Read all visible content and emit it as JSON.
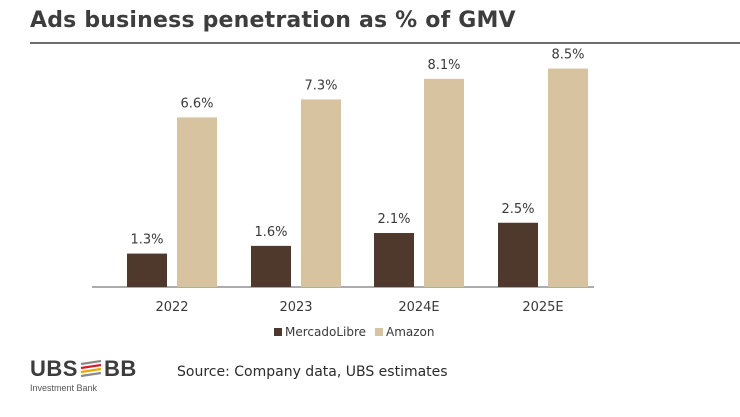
{
  "title": "Ads business penetration as % of GMV",
  "source": "Source: Company data, UBS estimates",
  "logo": {
    "left": "UBS",
    "right": "BB",
    "sub": "Investment Bank"
  },
  "colors": {
    "mercadolibre": "#4f382c",
    "amazon": "#d8c3a0",
    "axis": "#7a7a7a",
    "text": "#3a3a3a"
  },
  "chart_data": {
    "type": "bar",
    "title": "Ads business penetration as % of GMV",
    "categories": [
      "2022",
      "2023",
      "2024E",
      "2025E"
    ],
    "series": [
      {
        "name": "MercadoLibre",
        "values": [
          1.3,
          1.6,
          2.1,
          2.5
        ],
        "labels": [
          "1.3%",
          "1.6%",
          "2.1%",
          "2.5%"
        ]
      },
      {
        "name": "Amazon",
        "values": [
          6.6,
          7.3,
          8.1,
          8.5
        ],
        "labels": [
          "6.6%",
          "7.3%",
          "8.1%",
          "8.5%"
        ]
      }
    ],
    "xlabel": "",
    "ylabel": "",
    "ylim": [
      0,
      10
    ],
    "grid": false,
    "legend": "bottom-center"
  }
}
